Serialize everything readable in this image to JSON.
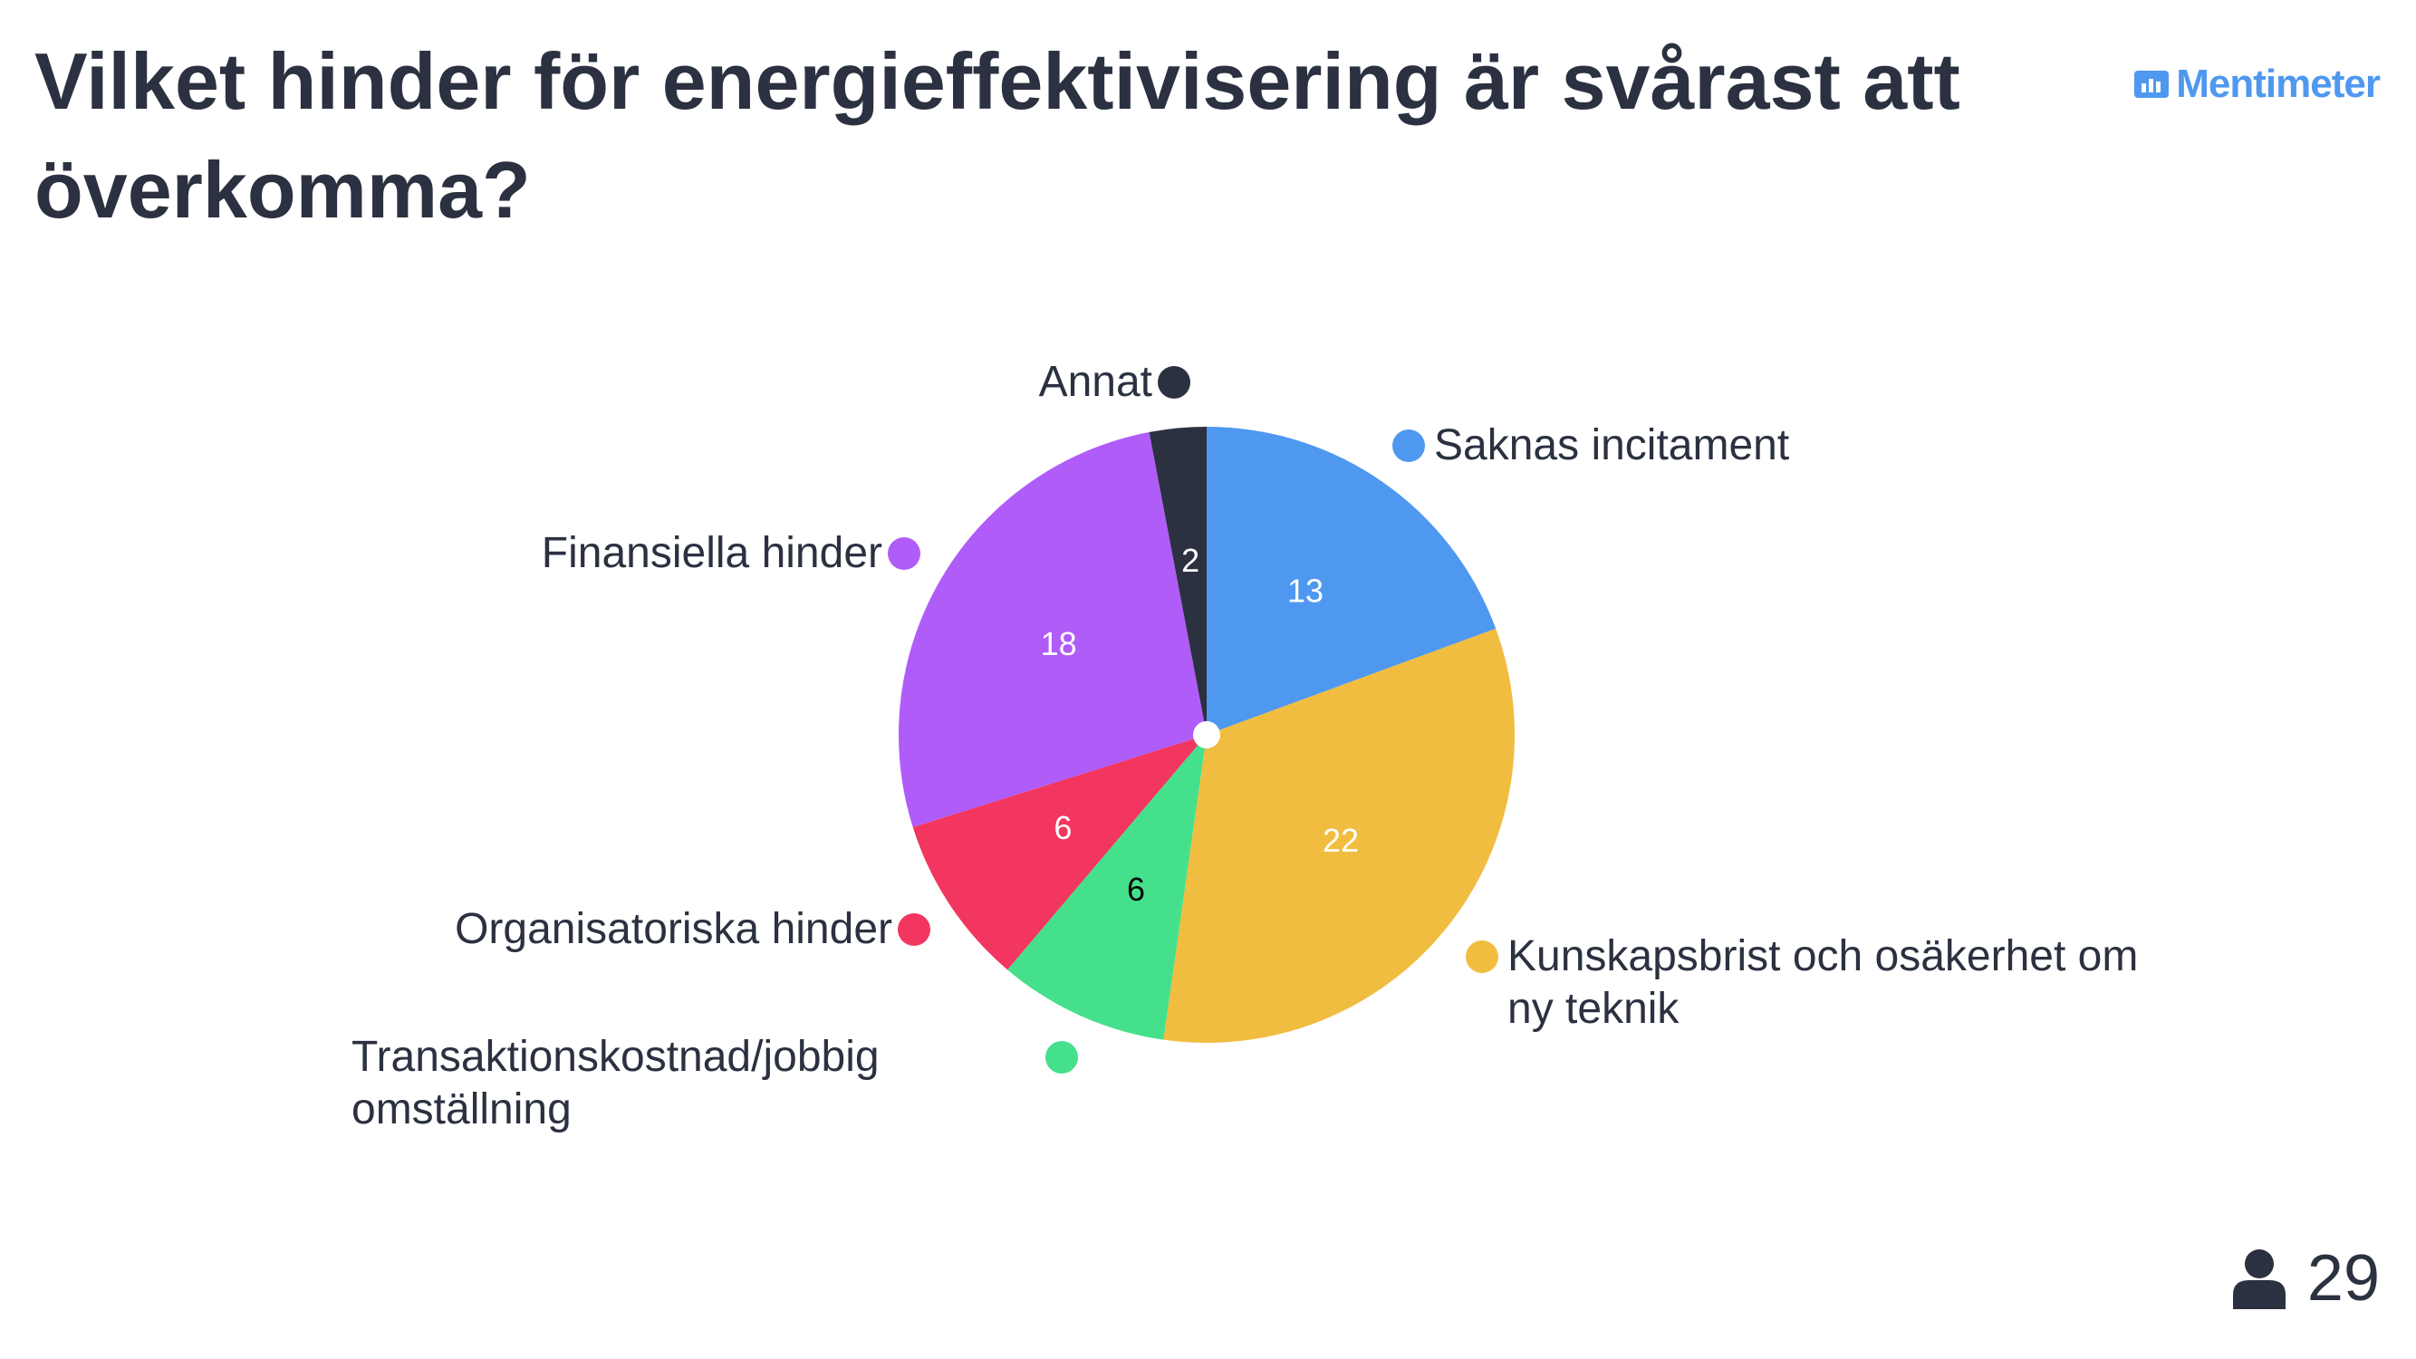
{
  "title": "Vilket hinder för energieffektivisering är svårast att överkomma?",
  "brand": "Mentimeter",
  "participants": 29,
  "chart_data": {
    "type": "pie",
    "categories": [
      "Saknas incitament",
      "Kunskapsbrist och osäkerhet om ny teknik",
      "Transaktionskostnad/jobbig omställning",
      "Organisatoriska hinder",
      "Finansiella hinder",
      "Annat"
    ],
    "values": [
      13,
      22,
      6,
      6,
      18,
      2
    ],
    "colors": [
      "#4f98ef",
      "#f1bd40",
      "#45e08c",
      "#f3365f",
      "#b05cf8",
      "#2b3140"
    ],
    "label_colors": [
      "#ffffff",
      "#ffffff",
      "#000000",
      "#ffffff",
      "#ffffff",
      "#ffffff"
    ]
  }
}
